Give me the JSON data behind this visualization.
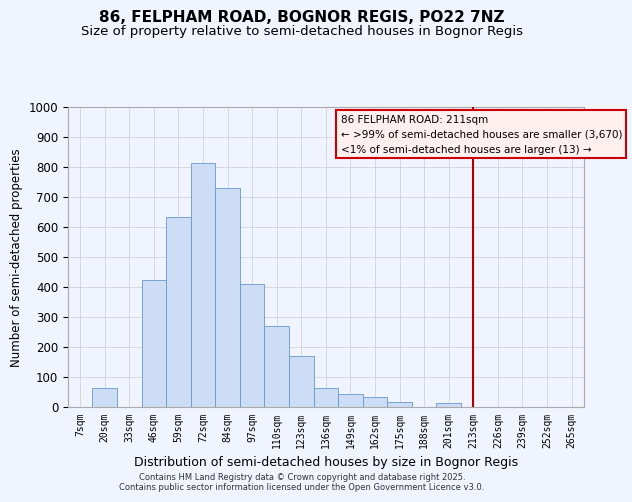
{
  "title": "86, FELPHAM ROAD, BOGNOR REGIS, PO22 7NZ",
  "subtitle": "Size of property relative to semi-detached houses in Bognor Regis",
  "xlabel": "Distribution of semi-detached houses by size in Bognor Regis",
  "ylabel": "Number of semi-detached properties",
  "bar_labels": [
    "7sqm",
    "20sqm",
    "33sqm",
    "46sqm",
    "59sqm",
    "72sqm",
    "84sqm",
    "97sqm",
    "110sqm",
    "123sqm",
    "136sqm",
    "149sqm",
    "162sqm",
    "175sqm",
    "188sqm",
    "201sqm",
    "213sqm",
    "226sqm",
    "239sqm",
    "252sqm",
    "265sqm"
  ],
  "bar_values": [
    0,
    63,
    0,
    425,
    635,
    815,
    730,
    410,
    270,
    170,
    63,
    43,
    35,
    18,
    0,
    13,
    0,
    0,
    0,
    0,
    0
  ],
  "bar_color": "#ccddf5",
  "bar_edge_color": "#6699cc",
  "vline_x_idx": 16,
  "vline_color": "#aa0000",
  "annotation_title": "86 FELPHAM ROAD: 211sqm",
  "annotation_line1": "← >99% of semi-detached houses are smaller (3,670)",
  "annotation_line2": "<1% of semi-detached houses are larger (13) →",
  "annotation_box_facecolor": "#fff0f0",
  "annotation_box_edgecolor": "#cc0000",
  "footer1": "Contains HM Land Registry data © Crown copyright and database right 2025.",
  "footer2": "Contains public sector information licensed under the Open Government Licence v3.0.",
  "ylim": [
    0,
    1000
  ],
  "background_color": "#f0f4ff",
  "title_fontsize": 11,
  "subtitle_fontsize": 9.5
}
